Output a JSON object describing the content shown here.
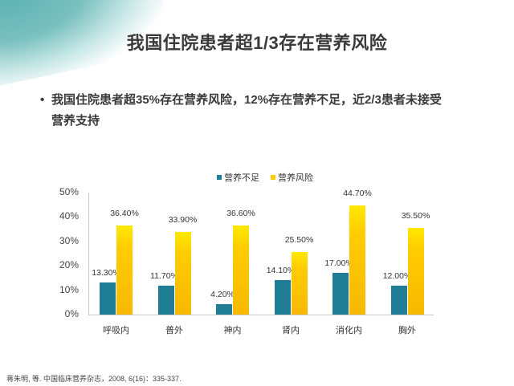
{
  "slide": {
    "title": "我国住院患者超1/3存在营养风险",
    "bullet": "我国住院患者超35%存在营养风险，12%存在营养不足，近2/3患者未接受营养支持",
    "bullet_line1": "我国住院患者超35%存在营养风险，12%存在营养不足，近2/3患者未接受",
    "bullet_line2": "营养支持",
    "bullet_marker": "•",
    "footnote": "蒋朱明, 等. 中国临床营养杂志，2008, 6(16)：335-337."
  },
  "colors": {
    "malnutrition": "#1f7d95",
    "nutrition_risk": "#ffcc00",
    "corner_decoration": "#5fb3b3"
  },
  "chart_data": {
    "type": "bar",
    "title": "",
    "xlabel": "",
    "ylabel": "",
    "ylim": [
      0,
      50
    ],
    "yticks": [
      "0%",
      "10%",
      "20%",
      "30%",
      "40%",
      "50%"
    ],
    "grid": false,
    "legend_position": "top",
    "categories": [
      "呼吸内",
      "普外",
      "神内",
      "肾内",
      "消化内",
      "胸外"
    ],
    "series": [
      {
        "name": "营养不足",
        "color": "#1f7d95",
        "values": [
          13.3,
          11.7,
          4.2,
          14.1,
          17.0,
          12.0
        ],
        "labels": [
          "13.30%",
          "11.70%",
          "4.20%",
          "14.10%",
          "17.00%",
          "12.00%"
        ]
      },
      {
        "name": "营养风险",
        "color": "#ffcc00",
        "values": [
          36.4,
          33.9,
          36.6,
          25.5,
          44.7,
          35.5
        ],
        "labels": [
          "36.40%",
          "33.90%",
          "36.60%",
          "25.50%",
          "44.70%",
          "35.50%"
        ]
      }
    ]
  }
}
